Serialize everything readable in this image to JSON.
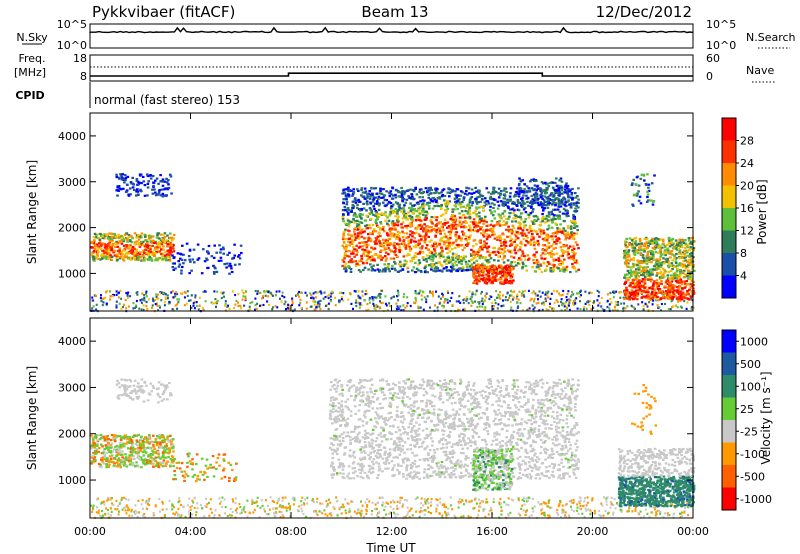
{
  "header": {
    "station": "Pykkvibaer (fitACF)",
    "beam": "Beam 13",
    "date": "12/Dec/2012"
  },
  "noise_panel": {
    "left_label": "N.Sky",
    "left_ticks": [
      "10^5",
      "10^0"
    ],
    "right_label": "N.Search",
    "right_ticks": [
      "10^5",
      "10^0"
    ]
  },
  "freq_panel": {
    "left_label_1": "Freq.",
    "left_label_2": "[MHz]",
    "left_ticks": [
      "18",
      "8"
    ],
    "right_label": "Nave",
    "right_ticks": [
      "60",
      "0"
    ],
    "freq_steps": [
      {
        "from_hour": 0,
        "to_hour": 7.9,
        "mhz": 10.2
      },
      {
        "from_hour": 7.9,
        "to_hour": 18.0,
        "mhz": 11.8
      },
      {
        "from_hour": 18.0,
        "to_hour": 24,
        "mhz": 10.2
      }
    ]
  },
  "cpid_panel": {
    "label": "CPID",
    "value": "normal (fast stereo) 153"
  },
  "chart_data": [
    {
      "type": "heatmap",
      "name": "power",
      "ylabel": "Slant Range [km]",
      "yticks": [
        "4000",
        "3000",
        "2000",
        "1000"
      ],
      "ylim": [
        180,
        4500
      ],
      "xlim_hours": [
        0,
        24
      ],
      "colorbar_label": "Power [dB]",
      "colorbar_ticks": [
        "28",
        "24",
        "20",
        "16",
        "12",
        "8",
        "4"
      ],
      "colorbar_range": [
        0,
        30
      ],
      "colors": [
        "#0000ff",
        "#1a4fa8",
        "#2e7d5a",
        "#5dbf3a",
        "#f2c200",
        "#ff8c00",
        "#ff3000",
        "#ff0000"
      ]
    },
    {
      "type": "heatmap",
      "name": "velocity",
      "ylabel": "Slant Range [km]",
      "yticks": [
        "4000",
        "3000",
        "2000",
        "1000"
      ],
      "ylim": [
        180,
        4500
      ],
      "xlim_hours": [
        0,
        24
      ],
      "colorbar_label": "Velocity [m s⁻¹]",
      "colorbar_ticks": [
        "1000",
        "500",
        "100",
        "25",
        "-25",
        "-100",
        "-500",
        "-1000"
      ],
      "colors": [
        "#0000ff",
        "#1e5aa0",
        "#2e8b6a",
        "#66cc33",
        "#c8c8c8",
        "#ff9900",
        "#ff6000",
        "#ff0000"
      ],
      "xlabel": "Time UT",
      "xticks": [
        "00:00",
        "04:00",
        "08:00",
        "12:00",
        "16:00",
        "20:00",
        "00:00"
      ]
    }
  ]
}
